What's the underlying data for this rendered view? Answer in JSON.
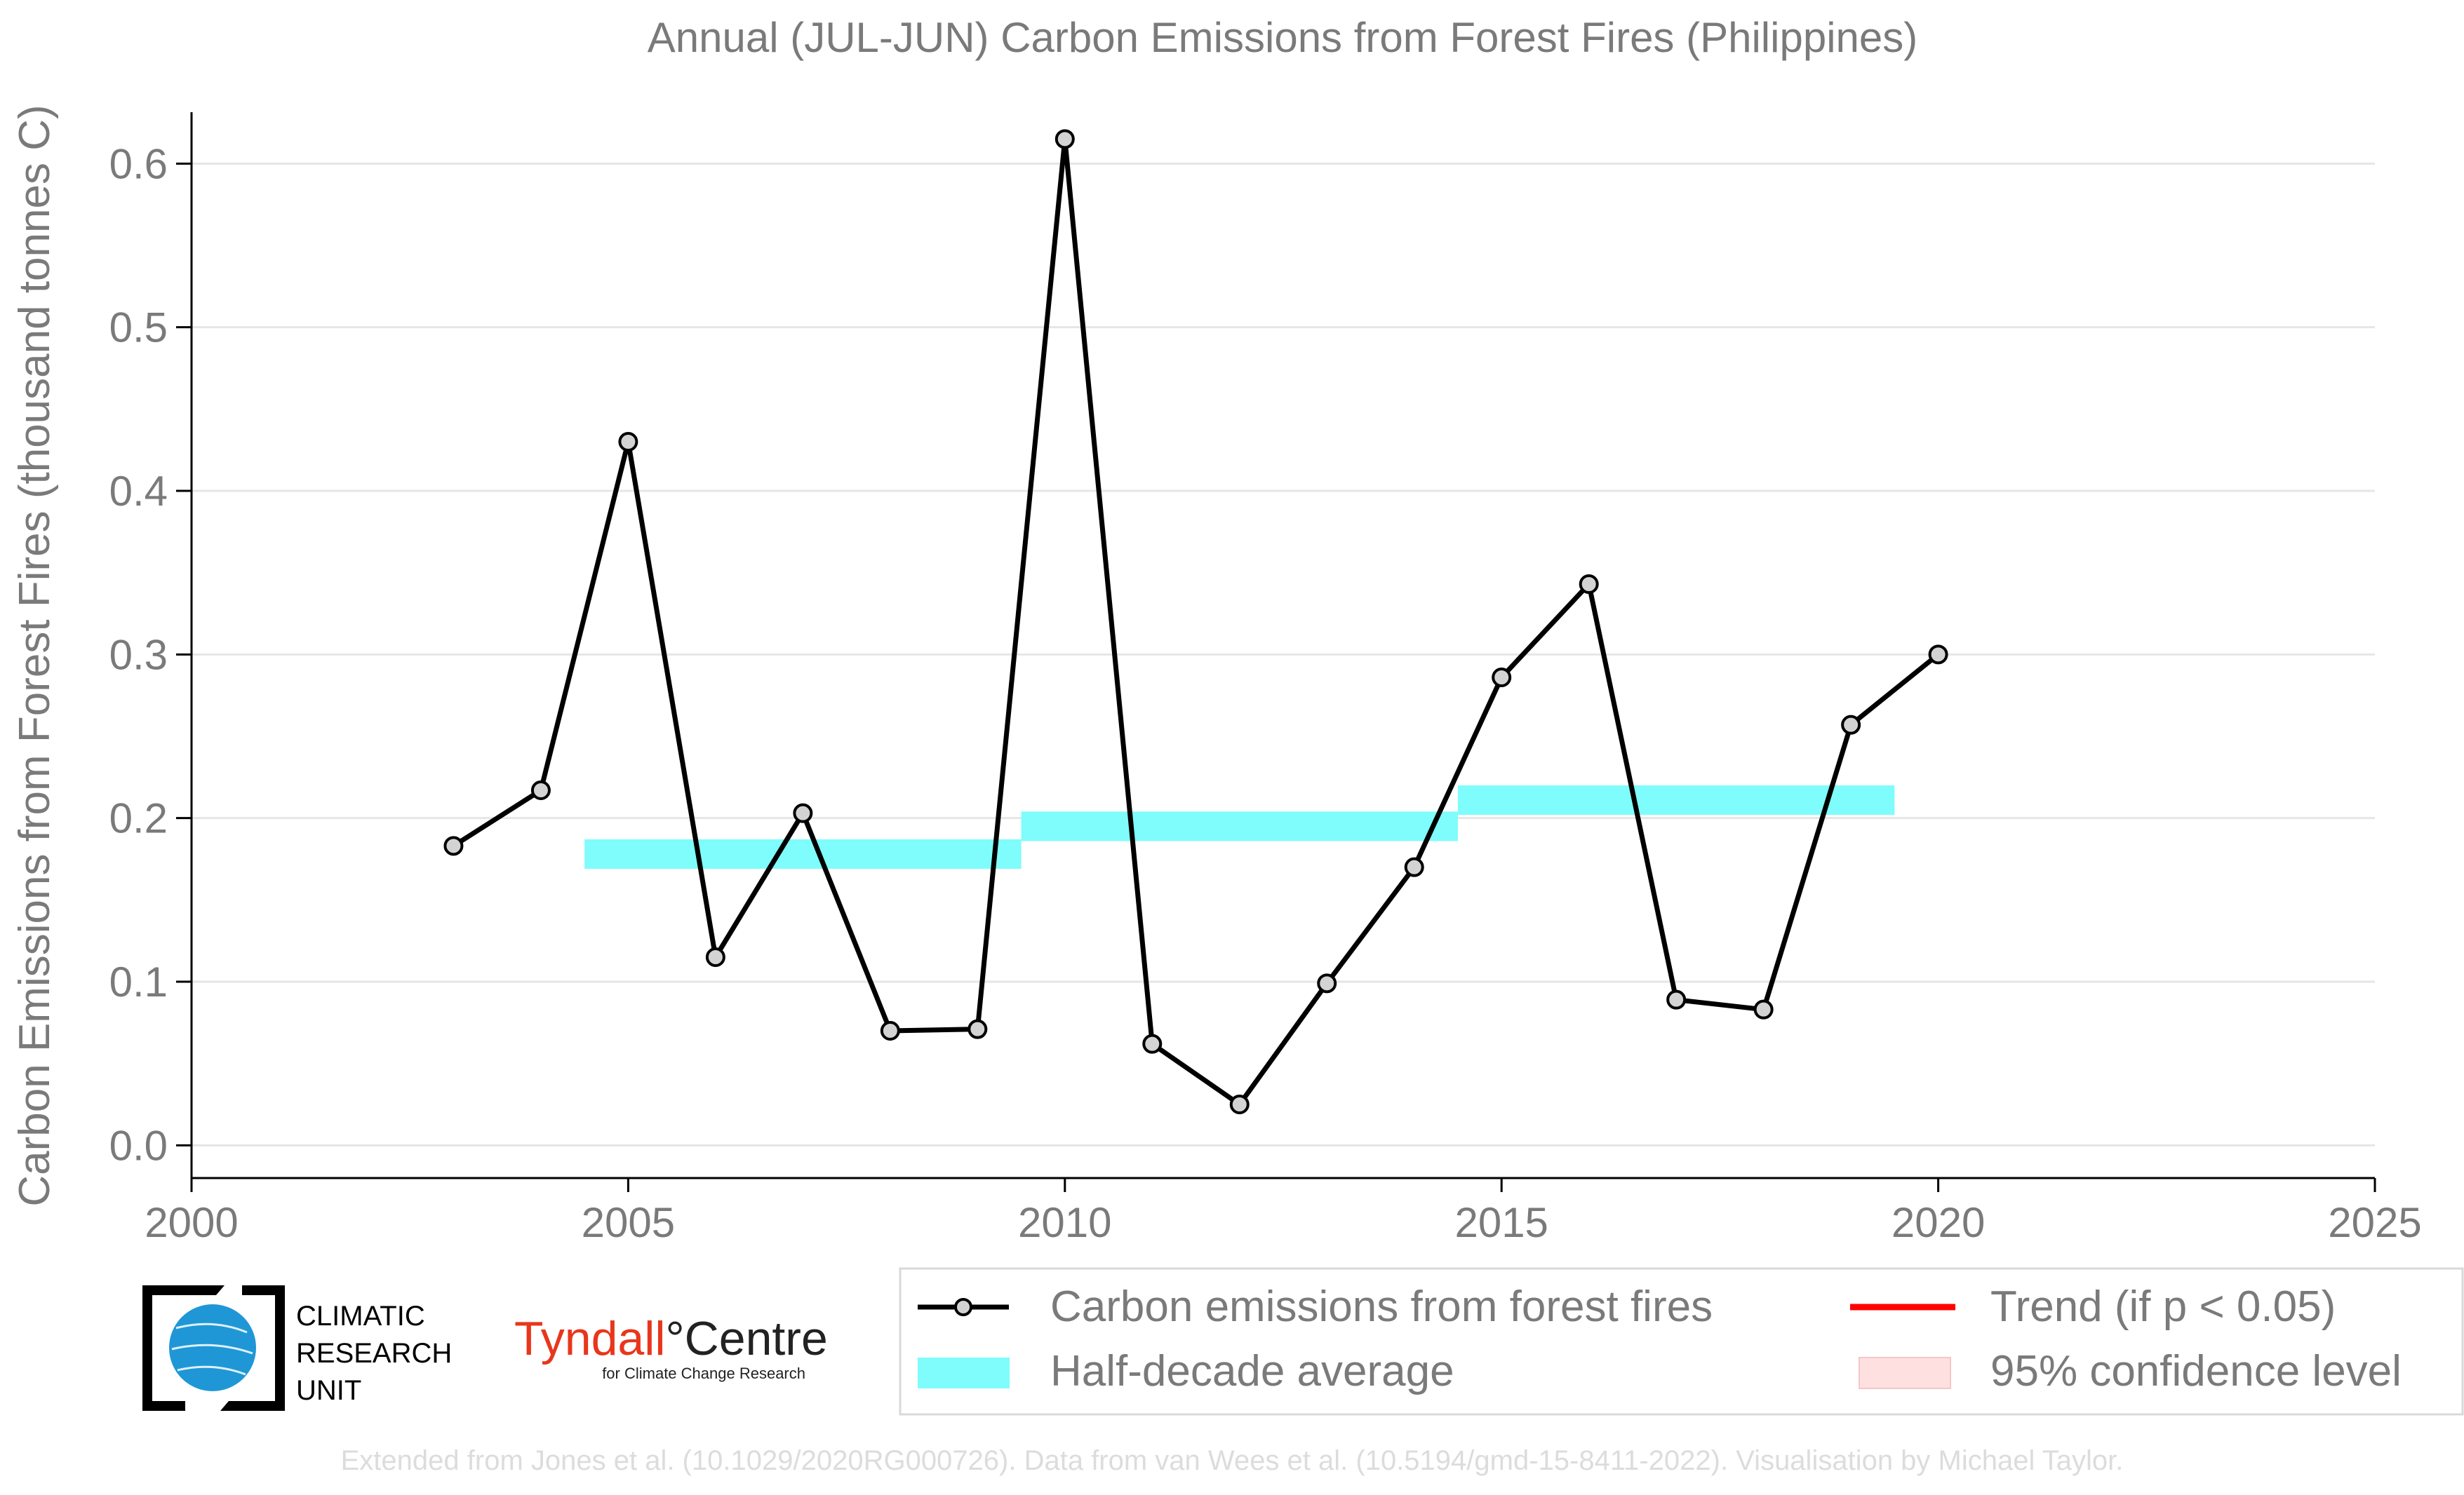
{
  "chart_data": {
    "type": "line",
    "title": "Annual (JUL-JUN) Carbon Emissions from Forest Fires (Philippines)",
    "xlabel": "",
    "ylabel": "Carbon Emissions from Forest Fires (thousand tonnes C)",
    "xlim": [
      2000,
      2025
    ],
    "ylim": [
      -0.02,
      0.64
    ],
    "xticks": [
      2000,
      2005,
      2010,
      2015,
      2020,
      2025
    ],
    "yticks": [
      0.0,
      0.1,
      0.2,
      0.3,
      0.4,
      0.5,
      0.6
    ],
    "ytick_labels": [
      "0.0",
      "0.1",
      "0.2",
      "0.3",
      "0.4",
      "0.5",
      "0.6"
    ],
    "grid": "horizontal",
    "legend_position": "bottom",
    "series": [
      {
        "name": "Carbon emissions from forest fires",
        "color": "#000000",
        "x": [
          2003,
          2004,
          2005,
          2006,
          2007,
          2008,
          2009,
          2010,
          2011,
          2012,
          2013,
          2014,
          2015,
          2016,
          2017,
          2018,
          2019,
          2020
        ],
        "values": [
          0.183,
          0.217,
          0.43,
          0.115,
          0.203,
          0.07,
          0.071,
          0.615,
          0.062,
          0.025,
          0.099,
          0.17,
          0.286,
          0.343,
          0.089,
          0.083,
          0.257,
          0.3
        ]
      }
    ],
    "half_decade_average": {
      "name": "Half-decade average",
      "color": "#7ffcfc",
      "segments": [
        {
          "x_start": 2004.5,
          "x_end": 2009.5,
          "value": 0.178
        },
        {
          "x_start": 2009.5,
          "x_end": 2014.5,
          "value": 0.195
        },
        {
          "x_start": 2014.5,
          "x_end": 2019.5,
          "value": 0.211
        }
      ]
    },
    "legend": [
      {
        "label": "Carbon emissions from forest fires",
        "kind": "line-marker",
        "color": "#000000"
      },
      {
        "label": "Trend (if p < 0.05)",
        "kind": "line",
        "color": "#ff0000"
      },
      {
        "label": "Half-decade average",
        "kind": "band",
        "color": "#7ffcfc"
      },
      {
        "label": "95% confidence level",
        "kind": "band",
        "color": "#ffe0e0"
      }
    ]
  },
  "logos": {
    "cru": {
      "line1": "CLIMATIC",
      "line2": "RESEARCH",
      "line3": "UNIT"
    },
    "tyndall": {
      "part1": "Tyndall",
      "part2": "°Centre",
      "subtitle": "for Climate Change Research"
    }
  },
  "credit": "Extended from Jones et al. (10.1029/2020RG000726). Data from van Wees et al. (10.5194/gmd-15-8411-2022). Visualisation by Michael Taylor."
}
